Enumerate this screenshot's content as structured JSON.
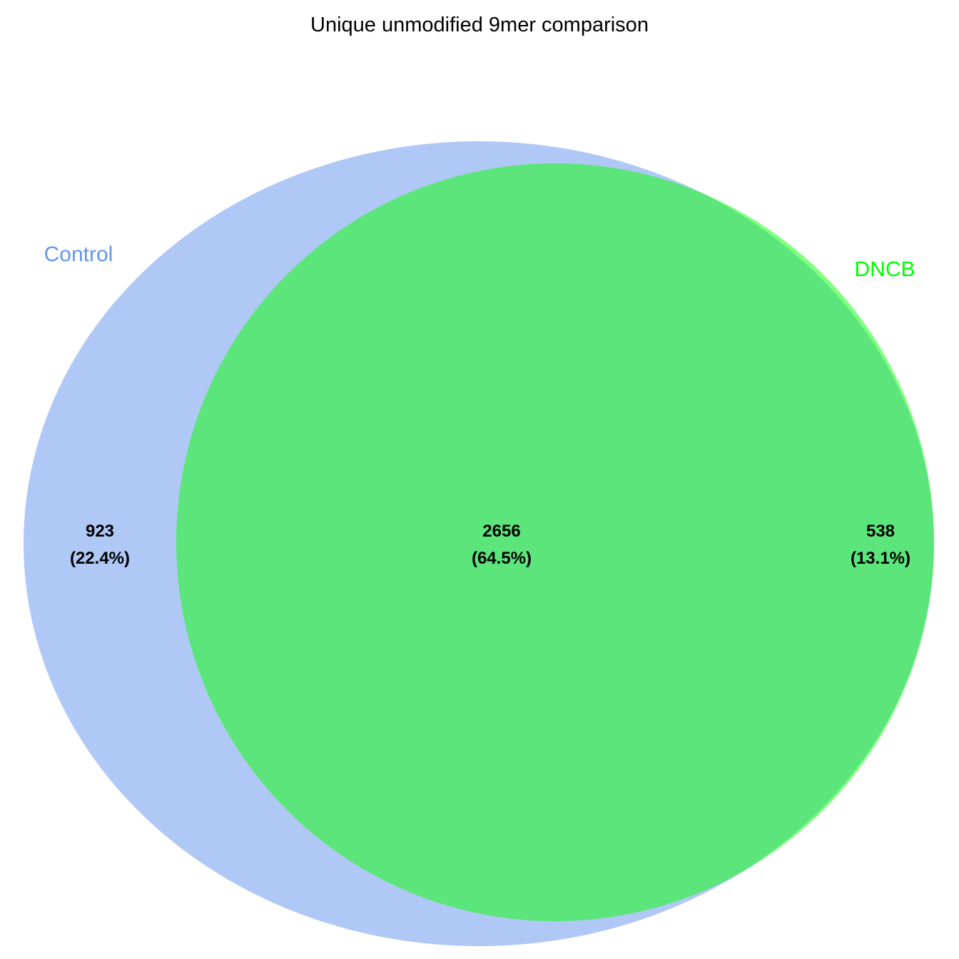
{
  "title": "Unique unmodified 9mer comparison",
  "sets": [
    {
      "name": "Control",
      "color": "#6495ED",
      "fill": "#B0C8F5"
    },
    {
      "name": "DNCB",
      "color": "#00FF00",
      "fill": "#80FF80"
    }
  ],
  "intersection_fill": "#5BE57A",
  "regions": [
    {
      "id": "control-only",
      "count": "923",
      "percent": "(22.4%)"
    },
    {
      "id": "both",
      "count": "2656",
      "percent": "(64.5%)"
    },
    {
      "id": "dncb-only",
      "count": "538",
      "percent": "(13.1%)"
    }
  ]
}
